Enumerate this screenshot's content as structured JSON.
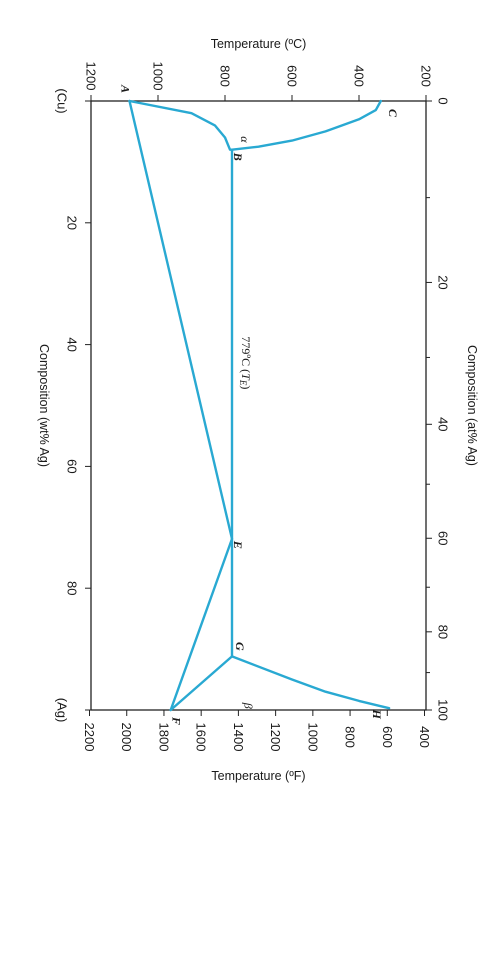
{
  "chart_data": {
    "type": "line",
    "title": "",
    "x_axis": {
      "label": "Composition (wt% Ag)",
      "range": [
        0,
        100
      ],
      "ticks": [
        0,
        20,
        40,
        60,
        80,
        100
      ],
      "end_labels": [
        "(Cu)",
        "(Ag)"
      ]
    },
    "x_axis_top": {
      "label": "Composition (at% Ag)",
      "range": [
        0,
        100
      ],
      "ticks": [
        0,
        20,
        40,
        60,
        80,
        100
      ]
    },
    "y_axis": {
      "label": "Temperature (ºC)",
      "range": [
        200,
        1200
      ],
      "ticks": [
        200,
        400,
        600,
        800,
        1000,
        1200
      ]
    },
    "y_axis_right": {
      "label": "Temperature (ºF)",
      "range": [
        400,
        2200
      ],
      "ticks": [
        400,
        600,
        800,
        1000,
        1200,
        1400,
        1600,
        1800,
        2000,
        2200
      ]
    },
    "grid": false,
    "line_color": "#29a9d2",
    "series": [
      {
        "points": [
          [
            0,
            1085
          ],
          [
            71.9,
            779
          ],
          [
            100,
            962
          ]
        ]
      },
      {
        "points": [
          [
            0,
            1085
          ],
          [
            2,
            900
          ],
          [
            4,
            830
          ],
          [
            6,
            800
          ],
          [
            8,
            785
          ],
          [
            8,
            779
          ]
        ]
      },
      {
        "points": [
          [
            8,
            779
          ],
          [
            91.2,
            779
          ]
        ]
      },
      {
        "points": [
          [
            100,
            962
          ],
          [
            91.2,
            779
          ]
        ]
      },
      {
        "points": [
          [
            8,
            779
          ],
          [
            7.5,
            700
          ],
          [
            6.5,
            600
          ],
          [
            5,
            500
          ],
          [
            3,
            400
          ],
          [
            1.5,
            350
          ],
          [
            0,
            335
          ]
        ]
      },
      {
        "points": [
          [
            91.2,
            779
          ],
          [
            95,
            600
          ],
          [
            97,
            500
          ],
          [
            98.5,
            400
          ],
          [
            99.7,
            310
          ]
        ]
      }
    ],
    "point_labels": [
      {
        "text": "A",
        "x": 0,
        "y": 1085
      },
      {
        "text": "B",
        "x": 8,
        "y": 779
      },
      {
        "text": "C",
        "x": 0,
        "y": 335
      },
      {
        "text": "E",
        "x": 71.9,
        "y": 779
      },
      {
        "text": "F",
        "x": 100,
        "y": 962
      },
      {
        "text": "G",
        "x": 91.2,
        "y": 779
      },
      {
        "text": "H",
        "x": 99.7,
        "y": 310
      }
    ],
    "phase_labels": [
      {
        "text": "α",
        "x": 4,
        "y": 770
      },
      {
        "text": "β",
        "x": 97,
        "y": 760
      }
    ],
    "annotations": [
      {
        "text": "779ºC (",
        "italic": "T",
        "sub": "E",
        "close": ")",
        "x": 43,
        "y": 779
      }
    ]
  }
}
